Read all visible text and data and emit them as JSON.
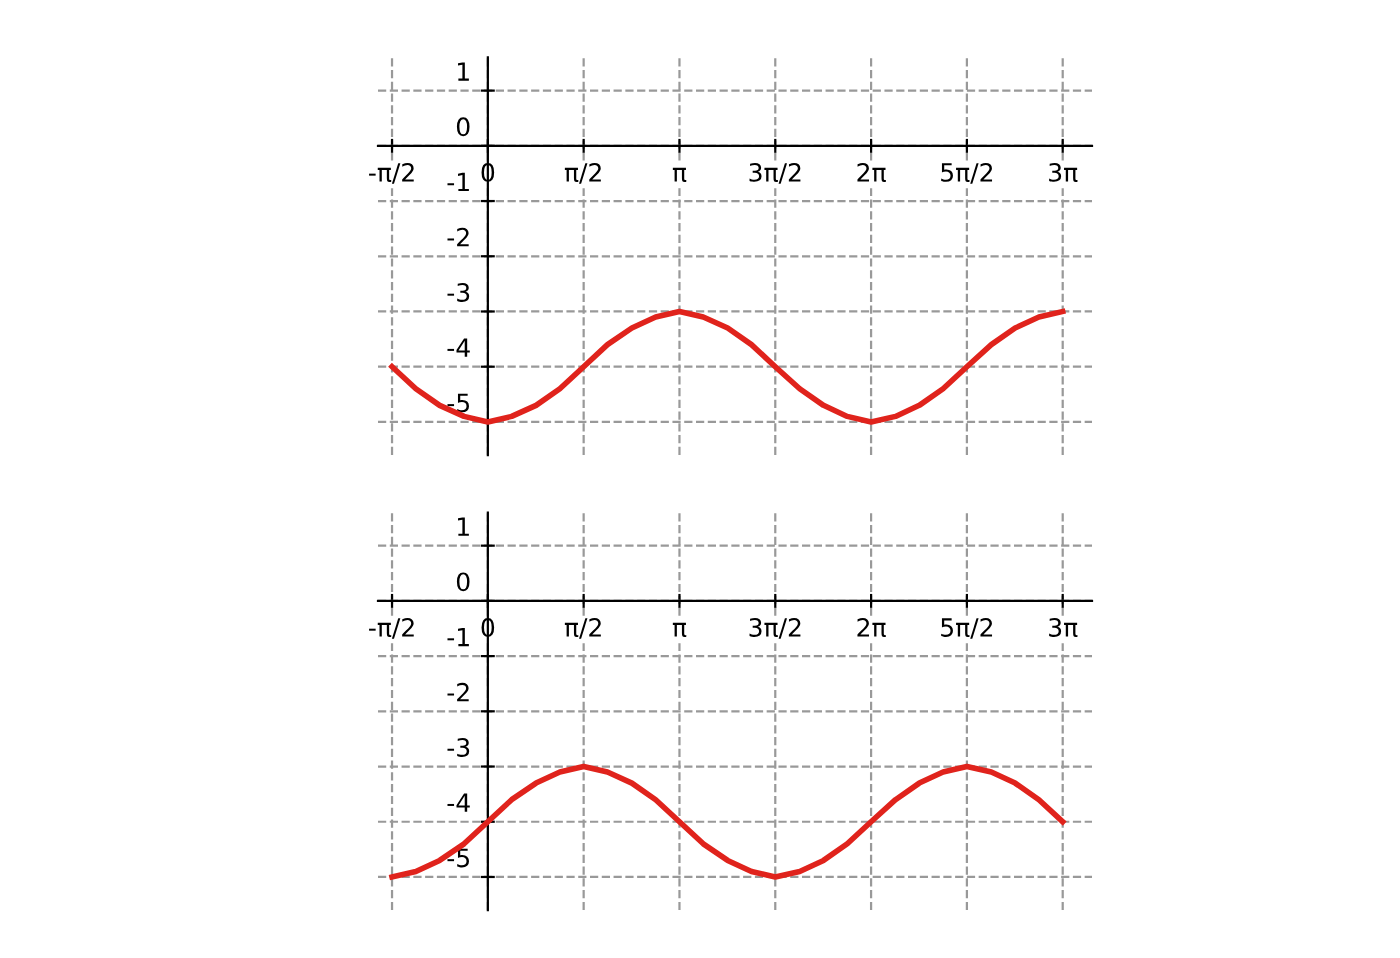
{
  "chart_data": [
    {
      "type": "line",
      "x": [
        -1.57,
        -1.18,
        -0.79,
        -0.39,
        0,
        0.39,
        0.79,
        1.18,
        1.57,
        1.96,
        2.36,
        2.75,
        3.14,
        3.53,
        3.93,
        4.32,
        4.71,
        5.11,
        5.5,
        5.89,
        6.28,
        6.68,
        7.07,
        7.46,
        7.85,
        8.25,
        8.64,
        9.03,
        9.42
      ],
      "series": [
        {
          "color": "#e0231c",
          "values": [
            -4,
            -4.4,
            -4.7,
            -4.9,
            -5,
            -4.9,
            -4.7,
            -4.4,
            -4,
            -3.6,
            -3.3,
            -3.1,
            -3,
            -3.1,
            -3.3,
            -3.6,
            -4,
            -4.4,
            -4.7,
            -4.9,
            -5,
            -4.9,
            -4.7,
            -4.4,
            -4,
            -3.6,
            -3.3,
            -3.1,
            -3
          ]
        }
      ],
      "xlim": [
        -1.8,
        9.9
      ],
      "ylim": [
        -5.6,
        1.6
      ],
      "xticks": [
        {
          "value": -1.57,
          "label": "-π/2"
        },
        0,
        {
          "value": 1.57,
          "label": "π/2"
        },
        {
          "value": 3.14,
          "label": "π"
        },
        {
          "value": 4.71,
          "label": "3π/2"
        },
        {
          "value": 6.28,
          "label": "2π"
        },
        {
          "value": 7.85,
          "label": "5π/2"
        },
        {
          "value": 9.42,
          "label": "3π"
        }
      ],
      "yticks": [
        -5,
        -4,
        -3,
        -2,
        -1,
        0,
        1
      ],
      "grid": true
    },
    {
      "type": "line",
      "x": [
        -1.57,
        -1.18,
        -0.79,
        -0.39,
        0,
        0.39,
        0.79,
        1.18,
        1.57,
        1.96,
        2.36,
        2.75,
        3.14,
        3.53,
        3.93,
        4.32,
        4.71,
        5.11,
        5.5,
        5.89,
        6.28,
        6.68,
        7.07,
        7.46,
        7.85,
        8.25,
        8.64,
        9.03,
        9.42
      ],
      "series": [
        {
          "color": "#e0231c",
          "values": [
            -5,
            -4.9,
            -4.7,
            -4.4,
            -4,
            -3.6,
            -3.3,
            -3.1,
            -3,
            -3.1,
            -3.3,
            -3.6,
            -4,
            -4.4,
            -4.7,
            -4.9,
            -5,
            -4.9,
            -4.7,
            -4.4,
            -4,
            -3.6,
            -3.3,
            -3.1,
            -3,
            -3.1,
            -3.3,
            -3.6,
            -4
          ]
        }
      ],
      "xlim": [
        -1.8,
        9.9
      ],
      "ylim": [
        -5.6,
        1.6
      ],
      "xticks": [
        {
          "value": -1.57,
          "label": "-π/2"
        },
        0,
        {
          "value": 1.57,
          "label": "π/2"
        },
        {
          "value": 3.14,
          "label": "π"
        },
        {
          "value": 4.71,
          "label": "3π/2"
        },
        {
          "value": 6.28,
          "label": "2π"
        },
        {
          "value": 7.85,
          "label": "5π/2"
        },
        {
          "value": 9.42,
          "label": "3π"
        }
      ],
      "yticks": [
        -5,
        -4,
        -3,
        -2,
        -1,
        0,
        1
      ],
      "grid": true
    }
  ]
}
